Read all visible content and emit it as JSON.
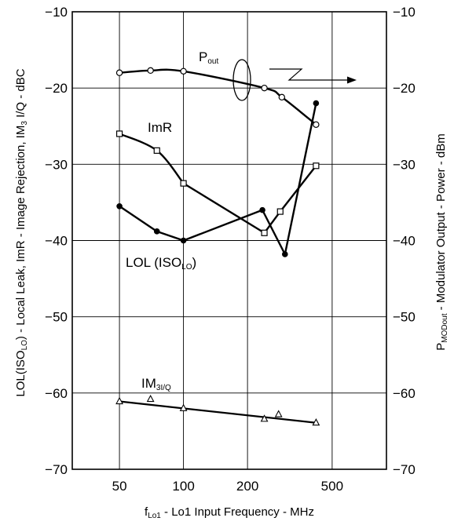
{
  "chart_data": {
    "type": "line",
    "x_scale": "log",
    "xlim": [
      30,
      900
    ],
    "ylim": [
      -70,
      -10
    ],
    "y2lim": [
      -70,
      -10
    ],
    "grid": true,
    "xticks": [
      50,
      100,
      200,
      500
    ],
    "xtick_labels": [
      "50",
      "100",
      "200",
      "500"
    ],
    "yticks": [
      -70,
      -60,
      -50,
      -40,
      -30,
      -20,
      -10
    ],
    "ytick_labels": [
      "−70",
      "−60",
      "−50",
      "−40",
      "−30",
      "−20",
      "−10"
    ],
    "xlabel": {
      "pre": "f",
      "sub": "Lo1",
      "post": " - Lo1 Input Frequency - MHz"
    },
    "ylabel": {
      "p1": "LOL(ISO",
      "s1": "LO",
      "p2": ") - Local Leak, ImR - Image Rejection, IM",
      "s2": "3",
      "p3": " I/Q - dBC"
    },
    "y2label": {
      "p1": "P",
      "s1": "MODout",
      "p2": " - Modulator Output - Power - dBm"
    },
    "series": [
      {
        "key": "pout",
        "label_main": "P",
        "label_sub": "out",
        "marker": "open-circle",
        "axis": "right",
        "x": [
          50,
          70,
          100,
          240,
          290,
          420
        ],
        "y": [
          -18,
          -17.7,
          -17.8,
          -20,
          -21.2,
          -24.8
        ]
      },
      {
        "key": "imr",
        "label_main": "ImR",
        "label_sub": "",
        "marker": "open-square",
        "axis": "left",
        "x": [
          50,
          75,
          100,
          240,
          285,
          420
        ],
        "y": [
          -26,
          -28.2,
          -32.5,
          -39,
          -36.2,
          -30.2
        ]
      },
      {
        "key": "lol",
        "label_main": "LOL (ISO",
        "label_sub": "LO",
        "label_post": ")",
        "marker": "filled-circle",
        "axis": "left",
        "x": [
          50,
          75,
          100,
          235,
          300,
          420
        ],
        "y": [
          -35.5,
          -38.8,
          -40,
          -36,
          -41.8,
          -22
        ]
      },
      {
        "key": "im3",
        "label_main": "IM",
        "label_sub": "3I/Q",
        "marker": "open-triangle",
        "axis": "left",
        "x": [
          50,
          70,
          100,
          240,
          280,
          420
        ],
        "y": [
          -61.1,
          -60.8,
          -62,
          -63.4,
          -62.8,
          -63.9
        ]
      }
    ]
  }
}
